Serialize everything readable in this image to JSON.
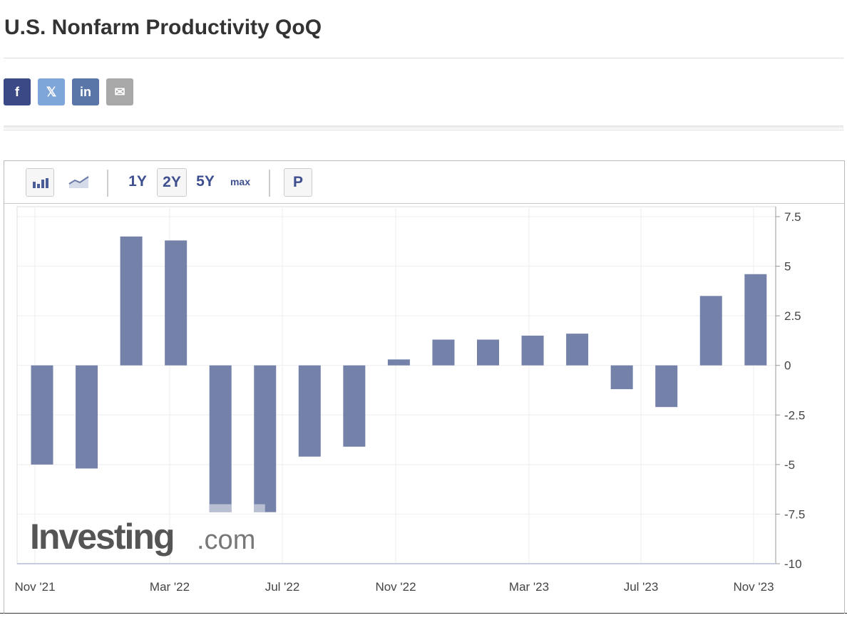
{
  "title": "U.S. Nonfarm Productivity QoQ",
  "share": [
    {
      "name": "facebook",
      "label": "f",
      "color": "#3b4a86"
    },
    {
      "name": "x",
      "label": "𝕏",
      "color": "#7fa6d8"
    },
    {
      "name": "linkedin",
      "label": "in",
      "color": "#5a76a8"
    },
    {
      "name": "email",
      "label": "✉",
      "color": "#a8a8a8"
    }
  ],
  "toolbar": {
    "ranges": [
      "1Y",
      "2Y",
      "5Y",
      "max"
    ],
    "selected_range": "2Y",
    "p_label": "P"
  },
  "watermark": {
    "brand": "Investing",
    "suffix": ".com"
  },
  "chart_data": {
    "type": "bar",
    "title": "U.S. Nonfarm Productivity QoQ",
    "values": [
      -5.0,
      -5.2,
      6.5,
      6.3,
      -7.4,
      -7.4,
      -4.6,
      -4.1,
      0.3,
      1.3,
      1.3,
      1.5,
      1.6,
      -1.2,
      -2.1,
      3.5,
      4.6
    ],
    "preliminary_overlay": [
      null,
      null,
      null,
      null,
      -7.0,
      -7.0,
      null,
      null,
      null,
      null,
      null,
      null,
      null,
      null,
      null,
      null,
      null
    ],
    "x_tick_labels": [
      "Nov '21",
      "Mar '22",
      "Jul '22",
      "Nov '22",
      "Mar '23",
      "Jul '23",
      "Nov '23"
    ],
    "y_ticks": [
      "7.5",
      "5",
      "2.5",
      "0",
      "-2.5",
      "-5",
      "-7.5",
      "-10"
    ],
    "ylim": [
      -10,
      7.5
    ],
    "grid": true,
    "bar_color": "#7482aa",
    "overlay_color": "#b8bfd3"
  }
}
